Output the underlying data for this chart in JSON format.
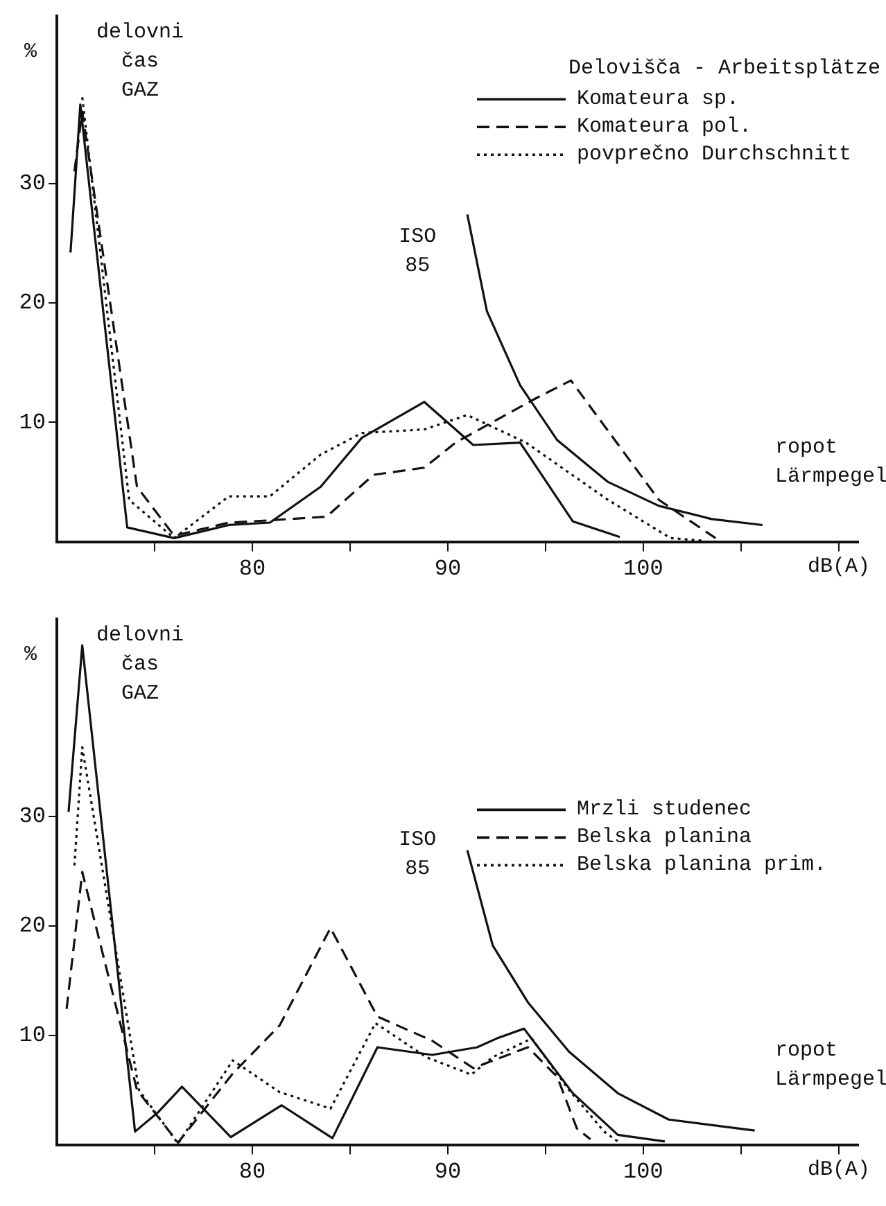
{
  "chart_data": [
    {
      "type": "line",
      "ylabel": "%",
      "xlabel": "dB(A)",
      "legend_title": "Delovišča - Arbeitsplätze",
      "legend": "top right",
      "annotations": [
        "delovni čas GAZ",
        "ISO 85",
        "ropot Lärmpegel"
      ],
      "xlim": [
        70,
        111
      ],
      "xticks": [
        {
          "value": 75,
          "label": null
        },
        80,
        {
          "value": 85,
          "label": null
        },
        90,
        {
          "value": 95,
          "label": null
        },
        100,
        {
          "value": 105,
          "label": null
        },
        {
          "value": 110,
          "label": null
        }
      ],
      "ylim": [
        0,
        44
      ],
      "yticks": [
        10,
        20,
        30
      ],
      "series": [
        {
          "name": "Komateura sp.",
          "color": "#111111",
          "line_style": "solid",
          "x": [
            70.7,
            71.2,
            73.6,
            76,
            78.8,
            80.9,
            83.5,
            85.6,
            88.8,
            91.3,
            93.7,
            96.4,
            98.8
          ],
          "values": [
            24.2,
            36.6,
            1.2,
            0.3,
            1.4,
            1.6,
            4.6,
            8.7,
            11.7,
            8.1,
            8.3,
            1.7,
            0.4
          ]
        },
        {
          "name": "Komateura pol.",
          "color": "#111111",
          "line_style": "dashed",
          "x": [
            70.9,
            71.3,
            74.1,
            76,
            78.8,
            81,
            83.8,
            86.2,
            88.8,
            90.4,
            94.5,
            96.3,
            100.8,
            103.7
          ],
          "values": [
            31,
            36,
            4.6,
            0.5,
            1.6,
            1.8,
            2.1,
            5.6,
            6.2,
            8.3,
            12,
            13.5,
            3.5,
            0.3
          ]
        },
        {
          "name": "povprečno Durchschnitt",
          "color": "#111111",
          "line_style": "dotted",
          "x": [
            71.3,
            73.7,
            76,
            78.8,
            80.9,
            83.5,
            85.6,
            88.8,
            91,
            94,
            98.2,
            101.4,
            103
          ],
          "values": [
            37.2,
            3.5,
            0.3,
            3.8,
            3.8,
            7.3,
            9.1,
            9.4,
            10.6,
            8.3,
            3.5,
            0.3,
            0.1
          ]
        },
        {
          "color": "#111111",
          "line_style": "solid",
          "x": [
            91,
            92,
            93.7,
            95.6,
            98.2,
            100.8,
            103.5,
            106.1
          ],
          "values": [
            27.4,
            19.3,
            13.1,
            8.5,
            5,
            3,
            1.9,
            1.4
          ]
        }
      ]
    },
    {
      "type": "line",
      "ylabel": "%",
      "xlabel": "dB(A)",
      "legend": "right",
      "annotations": [
        "delovni čas GAZ",
        "ISO 85",
        "ropot Lärmpegel"
      ],
      "xlim": [
        70,
        111
      ],
      "xticks": [
        {
          "value": 75,
          "label": null
        },
        80,
        {
          "value": 85,
          "label": null
        },
        90,
        {
          "value": 95,
          "label": null
        },
        100,
        {
          "value": 105,
          "label": null
        },
        {
          "value": 110,
          "label": null
        }
      ],
      "ylim": [
        0,
        48
      ],
      "yticks": [
        10,
        20,
        30
      ],
      "series": [
        {
          "name": "Mrzli studenec",
          "color": "#111111",
          "line_style": "solid",
          "x": [
            70.6,
            71.3,
            74,
            75.2,
            76.4,
            78.9,
            81.5,
            84.1,
            86.4,
            89.2,
            91.5,
            92.5,
            93.9,
            96.4,
            98.7,
            101.1
          ],
          "values": [
            30.4,
            45.6,
            1.2,
            3,
            5.3,
            0.7,
            3.6,
            0.6,
            8.9,
            8.2,
            8.9,
            9.7,
            10.6,
            4.7,
            0.9,
            0.3
          ]
        },
        {
          "name": "Belska planina",
          "color": "#111111",
          "line_style": "dashed",
          "x": [
            70.5,
            71.3,
            74.1,
            76.2,
            79,
            81.4,
            84,
            86.4,
            89.2,
            91.3,
            94.1,
            95.6,
            96.6,
            97.3
          ],
          "values": [
            12.4,
            24.9,
            5,
            0.2,
            6.5,
            10.9,
            19.8,
            11.7,
            9.5,
            7,
            8.9,
            6.2,
            1.5,
            0.5
          ]
        },
        {
          "name": "Belska planina prim.",
          "color": "#111111",
          "line_style": "dotted",
          "x": [
            70.9,
            71.3,
            74.2,
            76.2,
            79,
            81.4,
            84,
            86.3,
            88.9,
            91.2,
            92.3,
            94.3,
            96.2,
            98,
            98.7
          ],
          "values": [
            25.5,
            36.3,
            5,
            0.1,
            7.7,
            4.8,
            3.3,
            11.1,
            8,
            6.4,
            8,
            9.7,
            5,
            1.2,
            0.3
          ]
        },
        {
          "color": "#111111",
          "line_style": "solid",
          "x": [
            91,
            92.3,
            94.1,
            96.2,
            98.7,
            101.3,
            105.7
          ],
          "values": [
            26.9,
            18.2,
            13,
            8.5,
            4.7,
            2.3,
            1.3
          ]
        }
      ]
    }
  ]
}
